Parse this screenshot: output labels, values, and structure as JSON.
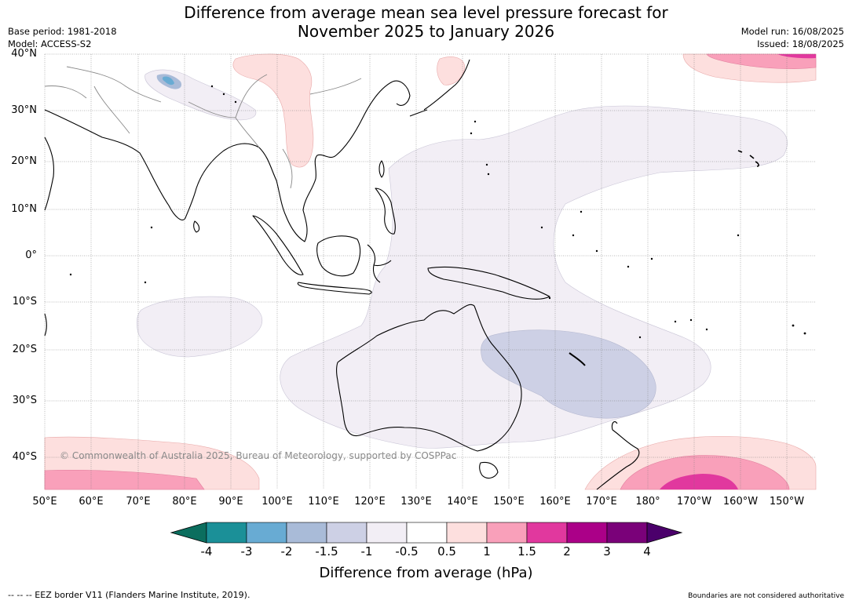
{
  "title_line1": "Difference from average mean sea level pressure forecast for",
  "title_line2": "November 2025 to January 2026",
  "base_period": "Base period: 1981-2018",
  "model": "Model: ACCESS-S2",
  "model_run": "Model run: 16/08/2025",
  "issued": "Issued: 18/08/2025",
  "copyright": "© Commonwealth of Australia 2025, Bureau of Meteorology, supported by COSPPac",
  "lat_labels": [
    "40°N",
    "30°N",
    "20°N",
    "10°N",
    "0°",
    "10°S",
    "20°S",
    "30°S",
    "40°S"
  ],
  "lon_labels": [
    "50°E",
    "60°E",
    "70°E",
    "80°E",
    "90°E",
    "100°E",
    "110°E",
    "120°E",
    "130°E",
    "140°E",
    "150°E",
    "160°E",
    "170°E",
    "180°",
    "170°W",
    "160°W",
    "150°W"
  ],
  "colorbar": {
    "title": "Difference from average (hPa)",
    "tick_labels": [
      "-4",
      "-3",
      "-2",
      "-1.5",
      "-1",
      "-0.5",
      "0.5",
      "1",
      "1.5",
      "2",
      "3",
      "4"
    ],
    "colors": {
      "below_min": "#0b6e5e",
      "bins": [
        "#1b9098",
        "#68abd3",
        "#a9bbd8",
        "#cdd0e5",
        "#f2eef5",
        "#ffffff",
        "#fddfde",
        "#f9a0ba",
        "#e1389e",
        "#ab0088",
        "#7a0179"
      ],
      "above_max": "#4b006b"
    }
  },
  "footer_left": "-- -- -- EEZ border V11 (Flanders Marine Institute, 2019).",
  "footer_right": "Boundaries are not considered authoritative"
}
